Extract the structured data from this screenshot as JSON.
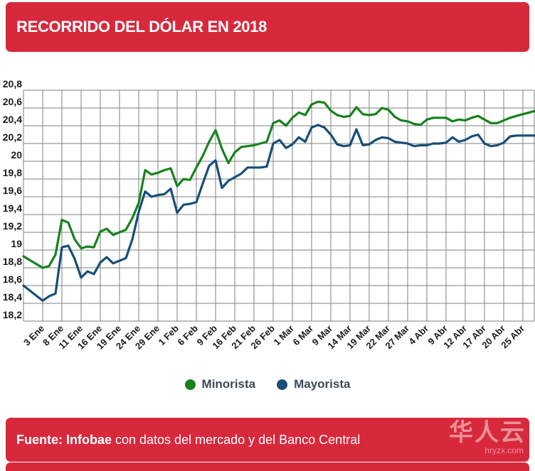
{
  "header": {
    "title": "RECORRIDO DEL DÓLAR EN 2018"
  },
  "footer": {
    "source_bold": "Fuente: Infobae",
    "source_rest": " con datos del mercado y del Banco Central"
  },
  "watermark": {
    "brand": "华人云",
    "domain": "hryzx.com"
  },
  "colors": {
    "banner_red": "#d8283c",
    "minorista_green": "#15821d",
    "mayorista_blue": "#174e78",
    "grid": "#7f7f7f",
    "axis_text": "#1a1a1a",
    "legend_text": "#3d4852"
  },
  "legend": {
    "minorista_label": "Minorista",
    "mayorista_label": "Mayorista"
  },
  "chart_data": {
    "type": "line",
    "title": "RECORRIDO DEL DÓLAR EN 2018",
    "xlabel": "",
    "ylabel": "",
    "ylim": [
      18.2,
      20.8
    ],
    "y_step": 0.2,
    "grid": true,
    "legend_position": "bottom",
    "y_tick_labels_top_to_bottom": [
      "20,8",
      "20,6",
      "20,4",
      "20,2",
      "20",
      "19,8",
      "19,6",
      "19,4",
      "19,2",
      "19",
      "18,8",
      "18,6",
      "18,4",
      "18,2"
    ],
    "x_tick_labels": [
      "3 Ene",
      "8 Ene",
      "11 Ene",
      "16 Ene",
      "19 Ene",
      "24 Ene",
      "29 Ene",
      "1 Feb",
      "6 Feb",
      "9 Feb",
      "16 Feb",
      "21 Feb",
      "26 Feb",
      "1 Mar",
      "6 Mar",
      "9 Mar",
      "14 Mar",
      "19 Mar",
      "22 Mar",
      "27 Mar",
      "4 Abr",
      "9 Abr",
      "12 Abr",
      "17 Abr",
      "20 Abr",
      "25 Abr"
    ],
    "x": [
      "2 Ene",
      "3 Ene",
      "4 Ene",
      "5 Ene",
      "8 Ene",
      "9 Ene",
      "10 Ene",
      "11 Ene",
      "12 Ene",
      "15 Ene",
      "16 Ene",
      "17 Ene",
      "18 Ene",
      "19 Ene",
      "22 Ene",
      "23 Ene",
      "24 Ene",
      "25 Ene",
      "26 Ene",
      "29 Ene",
      "30 Ene",
      "31 Ene",
      "1 Feb",
      "2 Feb",
      "5 Feb",
      "6 Feb",
      "7 Feb",
      "8 Feb",
      "9 Feb",
      "14 Feb",
      "15 Feb",
      "16 Feb",
      "19 Feb",
      "20 Feb",
      "21 Feb",
      "22 Feb",
      "23 Feb",
      "26 Feb",
      "27 Feb",
      "28 Feb",
      "1 Mar",
      "2 Mar",
      "5 Mar",
      "6 Mar",
      "7 Mar",
      "8 Mar",
      "9 Mar",
      "12 Mar",
      "13 Mar",
      "14 Mar",
      "15 Mar",
      "16 Mar",
      "19 Mar",
      "20 Mar",
      "21 Mar",
      "22 Mar",
      "23 Mar",
      "26 Mar",
      "27 Mar",
      "28 Mar",
      "3 Abr",
      "4 Abr",
      "5 Abr",
      "6 Abr",
      "9 Abr",
      "10 Abr",
      "11 Abr",
      "12 Abr",
      "13 Abr",
      "16 Abr",
      "17 Abr",
      "18 Abr",
      "19 Abr",
      "20 Abr",
      "23 Abr",
      "24 Abr",
      "25 Abr",
      "26 Abr",
      "27 Abr"
    ],
    "series": [
      {
        "name": "Minorista",
        "color": "#15821d",
        "values": [
          18.93,
          18.8,
          18.82,
          18.95,
          19.34,
          19.31,
          19.12,
          19.02,
          19.04,
          19.03,
          19.21,
          19.24,
          19.17,
          19.2,
          19.23,
          19.36,
          19.53,
          19.9,
          19.85,
          19.87,
          19.9,
          19.92,
          19.72,
          19.8,
          19.79,
          19.93,
          20.06,
          20.22,
          20.35,
          20.14,
          19.98,
          20.1,
          20.16,
          20.17,
          20.18,
          20.2,
          20.22,
          20.43,
          20.46,
          20.4,
          20.49,
          20.55,
          20.52,
          20.64,
          20.67,
          20.66,
          20.57,
          20.52,
          20.5,
          20.51,
          20.61,
          20.53,
          20.52,
          20.53,
          20.6,
          20.58,
          20.5,
          20.46,
          20.45,
          20.42,
          20.41,
          20.47,
          20.49,
          20.49,
          20.49,
          20.45,
          20.47,
          20.46,
          20.49,
          20.51,
          20.47,
          20.43,
          20.43,
          20.46,
          20.49,
          20.51,
          20.53,
          20.55,
          20.57
        ]
      },
      {
        "name": "Mayorista",
        "color": "#174e78",
        "values": [
          18.6,
          18.43,
          18.48,
          18.51,
          19.03,
          19.05,
          18.9,
          18.69,
          18.76,
          18.73,
          18.86,
          18.92,
          18.85,
          18.88,
          18.91,
          19.12,
          19.43,
          19.66,
          19.6,
          19.62,
          19.63,
          19.69,
          19.42,
          19.51,
          19.52,
          19.54,
          19.75,
          19.95,
          20.01,
          19.7,
          19.78,
          19.82,
          19.86,
          19.93,
          19.93,
          19.93,
          19.94,
          20.2,
          20.24,
          20.15,
          20.19,
          20.27,
          20.22,
          20.38,
          20.41,
          20.38,
          20.3,
          20.19,
          20.17,
          20.18,
          20.36,
          20.18,
          20.19,
          20.24,
          20.27,
          20.26,
          20.22,
          20.21,
          20.2,
          20.17,
          20.18,
          20.18,
          20.2,
          20.2,
          20.21,
          20.27,
          20.22,
          20.24,
          20.28,
          20.3,
          20.2,
          20.17,
          20.18,
          20.21,
          20.28,
          20.29,
          20.29,
          20.29,
          20.29
        ]
      }
    ]
  }
}
